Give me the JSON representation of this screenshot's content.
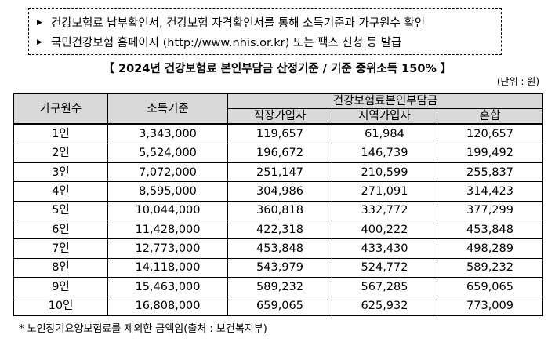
{
  "notice": {
    "lines": [
      "건강보험료 납부확인서, 건강보험 자격확인서를 통해 소득기준과 가구원수 확인",
      "국민건강보험 홈페이지 (http://www.nhis.or.kr) 또는 팩스 신청 등 발급"
    ]
  },
  "table_title": "【 2024년 건강보험료 본인부담금 산정기준 / 기준 중위소득 150% 】",
  "unit_label": "(단위 : 원)",
  "table": {
    "headers": {
      "household": "가구원수",
      "income": "소득기준",
      "premium_group": "건강보험료본인부담금",
      "workplace": "직장가입자",
      "regional": "지역가입자",
      "mixed": "혼합"
    },
    "rows": [
      {
        "household": "1인",
        "income": "3,343,000",
        "workplace": "119,657",
        "regional": "61,984",
        "mixed": "120,657"
      },
      {
        "household": "2인",
        "income": "5,524,000",
        "workplace": "196,672",
        "regional": "146,739",
        "mixed": "199,492"
      },
      {
        "household": "3인",
        "income": "7,072,000",
        "workplace": "251,147",
        "regional": "210,599",
        "mixed": "255,837"
      },
      {
        "household": "4인",
        "income": "8,595,000",
        "workplace": "304,986",
        "regional": "271,091",
        "mixed": "314,423"
      },
      {
        "household": "5인",
        "income": "10,044,000",
        "workplace": "360,818",
        "regional": "332,772",
        "mixed": "377,299"
      },
      {
        "household": "6인",
        "income": "11,428,000",
        "workplace": "422,318",
        "regional": "400,222",
        "mixed": "453,848"
      },
      {
        "household": "7인",
        "income": "12,773,000",
        "workplace": "453,848",
        "regional": "433,430",
        "mixed": "498,289"
      },
      {
        "household": "8인",
        "income": "14,118,000",
        "workplace": "543,979",
        "regional": "524,772",
        "mixed": "589,232"
      },
      {
        "household": "9인",
        "income": "15,463,000",
        "workplace": "589,232",
        "regional": "567,285",
        "mixed": "659,065"
      },
      {
        "household": "10인",
        "income": "16,808,000",
        "workplace": "659,065",
        "regional": "625,932",
        "mixed": "773,009"
      }
    ]
  },
  "footnote": "* 노인장기요양보험료를 제외한 금액임(출처 : 보건복지부)"
}
